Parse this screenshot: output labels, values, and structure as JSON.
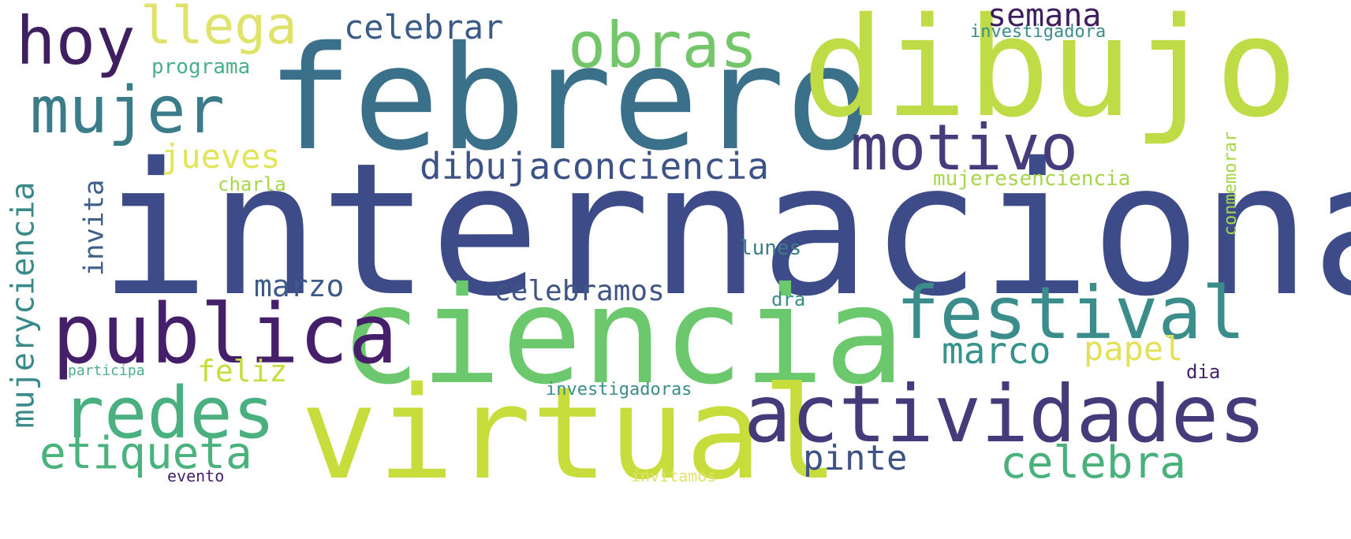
{
  "words": [
    {
      "text": "internacional",
      "color": "#3e4b89"
    },
    {
      "text": "febrero",
      "color": "#3a7089"
    },
    {
      "text": "dibujo",
      "color": "#bfdb46"
    },
    {
      "text": "ciencia",
      "color": "#6cc86c"
    },
    {
      "text": "virtual",
      "color": "#c6dd3c"
    },
    {
      "text": "actividades",
      "color": "#453a7a"
    },
    {
      "text": "publica",
      "color": "#461f6a"
    },
    {
      "text": "festival",
      "color": "#3a8d8a"
    },
    {
      "text": "redes",
      "color": "#4ab080"
    },
    {
      "text": "motivo",
      "color": "#463b7b"
    },
    {
      "text": "mujer",
      "color": "#3a7c8a"
    },
    {
      "text": "obras",
      "color": "#74c66a"
    },
    {
      "text": "hoy",
      "color": "#3f1f60"
    },
    {
      "text": "llega",
      "color": "#e0e36a"
    },
    {
      "text": "celebra",
      "color": "#4ab17c"
    },
    {
      "text": "etiqueta",
      "color": "#4ab27c"
    },
    {
      "text": "dibujaconciencia",
      "color": "#3d5286"
    },
    {
      "text": "mujeryciencia",
      "color": "#3a8a8a"
    },
    {
      "text": "marco",
      "color": "#34938a"
    },
    {
      "text": "pinte",
      "color": "#3e5286"
    },
    {
      "text": "celebrar",
      "color": "#3a5a88"
    },
    {
      "text": "semana",
      "color": "#3e1f5e"
    },
    {
      "text": "jueves",
      "color": "#e2e55a"
    },
    {
      "text": "marzo",
      "color": "#3d5a88"
    },
    {
      "text": "celebramos",
      "color": "#3f5587"
    },
    {
      "text": "papel",
      "color": "#e3e05a"
    },
    {
      "text": "feliz",
      "color": "#c6dd3c"
    },
    {
      "text": "invita",
      "color": "#3d5f89"
    },
    {
      "text": "programa",
      "color": "#4ab087"
    },
    {
      "text": "investigadora",
      "color": "#3a8d8a"
    },
    {
      "text": "mujeresenciencia",
      "color": "#a6d64a"
    },
    {
      "text": "charla",
      "color": "#a6d64a"
    },
    {
      "text": "lunes",
      "color": "#3a7c8a"
    },
    {
      "text": "dra",
      "color": "#3a8d8a"
    },
    {
      "text": "conmemorar",
      "color": "#a6d64a"
    },
    {
      "text": "dia",
      "color": "#461f6a"
    },
    {
      "text": "participa",
      "color": "#4ab087"
    },
    {
      "text": "investigadoras",
      "color": "#3a8d8a"
    },
    {
      "text": "evento",
      "color": "#461f6a"
    },
    {
      "text": "invitamos",
      "color": "#e0e36a"
    }
  ]
}
